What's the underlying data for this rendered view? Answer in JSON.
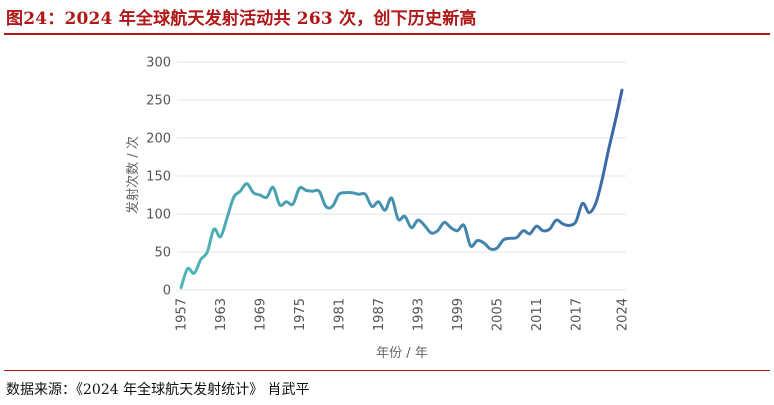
{
  "figure": {
    "title": "图24：2024 年全球航天发射活动共 263 次，创下历史新高",
    "source": "数据来源：《2024 年全球航天发射统计》 肖武平"
  },
  "colors": {
    "accent": "#b01717",
    "line_start": "#4fb8b4",
    "line_end": "#3a5ea8",
    "grid": "#e3e3e3"
  },
  "chart_data": {
    "type": "line",
    "title": "",
    "xlabel": "年份 / 年",
    "ylabel": "发射次数 / 次",
    "ylim": [
      0,
      300
    ],
    "yticks": [
      0,
      50,
      100,
      150,
      200,
      250,
      300
    ],
    "xticks": [
      1957,
      1963,
      1969,
      1975,
      1981,
      1987,
      1993,
      1999,
      2005,
      2011,
      2017,
      2024
    ],
    "grid": true,
    "legend": "none",
    "series": [
      {
        "x": [
          1957,
          1958,
          1959,
          1960,
          1961,
          1962,
          1963,
          1964,
          1965,
          1966,
          1967,
          1968,
          1969,
          1970,
          1971,
          1972,
          1973,
          1974,
          1975,
          1976,
          1977,
          1978,
          1979,
          1980,
          1981,
          1982,
          1983,
          1984,
          1985,
          1986,
          1987,
          1988,
          1989,
          1990,
          1991,
          1992,
          1993,
          1994,
          1995,
          1996,
          1997,
          1998,
          1999,
          2000,
          2001,
          2002,
          2003,
          2004,
          2005,
          2006,
          2007,
          2008,
          2009,
          2010,
          2011,
          2012,
          2013,
          2014,
          2015,
          2016,
          2017,
          2018,
          2019,
          2020,
          2021,
          2022,
          2023,
          2024
        ],
        "values": [
          3,
          28,
          22,
          40,
          50,
          80,
          70,
          95,
          122,
          130,
          140,
          128,
          125,
          122,
          135,
          112,
          116,
          113,
          134,
          131,
          130,
          130,
          110,
          110,
          126,
          128,
          128,
          126,
          126,
          110,
          116,
          105,
          121,
          93,
          97,
          82,
          92,
          85,
          75,
          78,
          89,
          82,
          78,
          85,
          58,
          65,
          62,
          54,
          55,
          66,
          68,
          69,
          78,
          74,
          84,
          78,
          80,
          92,
          87,
          85,
          90,
          114,
          102,
          114,
          146,
          186,
          223,
          263
        ]
      }
    ]
  }
}
